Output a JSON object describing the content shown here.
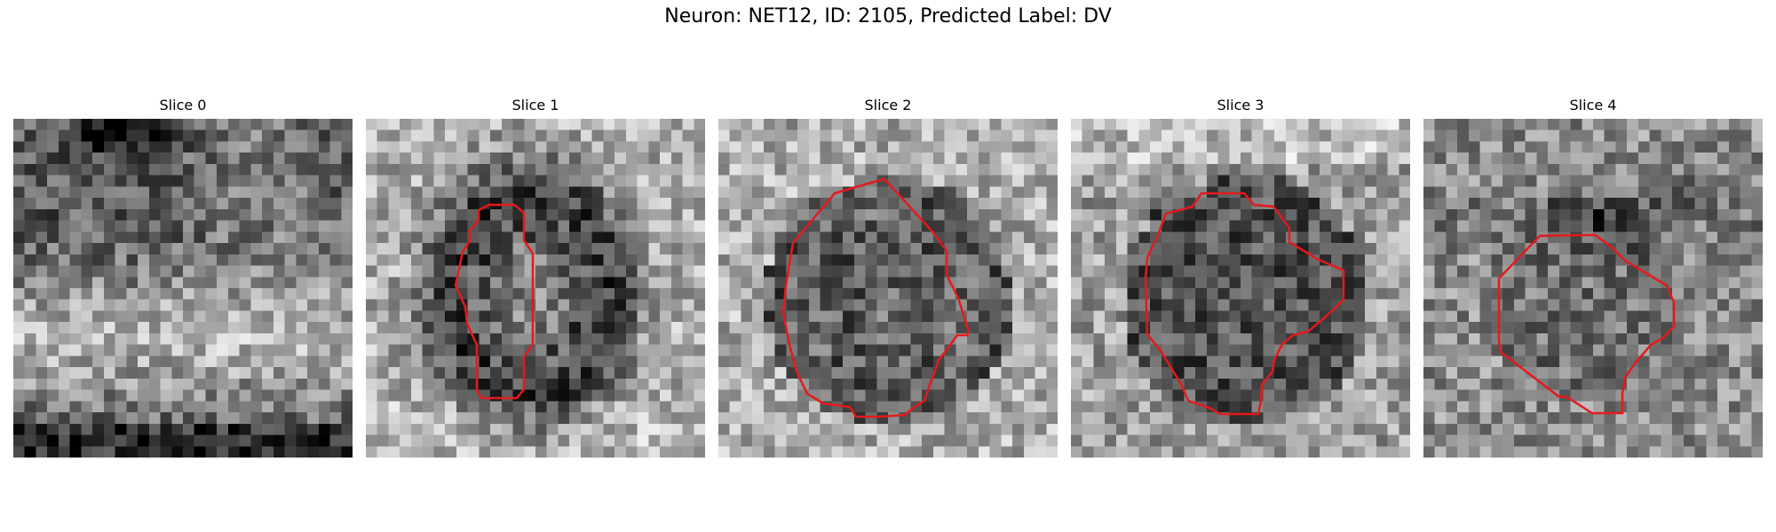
{
  "figure": {
    "title": "Neuron: NET12, ID: 2105, Predicted Label: DV",
    "contour_color": "#e41a1c"
  },
  "panels": [
    {
      "title": "Slice 0",
      "has_contour": false
    },
    {
      "title": "Slice 1",
      "has_contour": true
    },
    {
      "title": "Slice 2",
      "has_contour": true
    },
    {
      "title": "Slice 3",
      "has_contour": true
    },
    {
      "title": "Slice 4",
      "has_contour": true
    }
  ]
}
